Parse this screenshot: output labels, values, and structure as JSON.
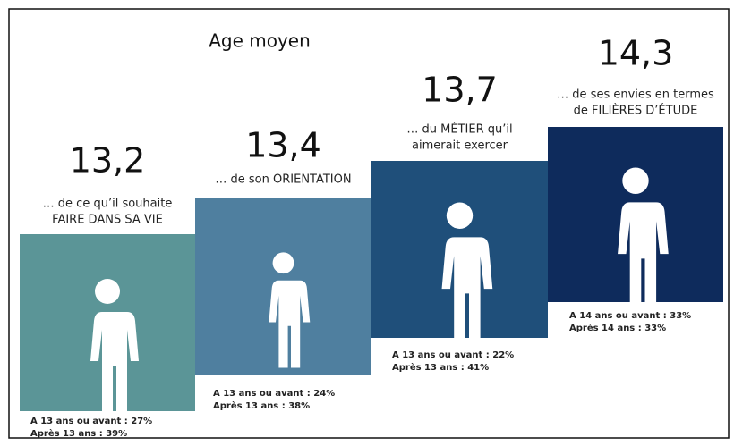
{
  "title": "Age moyen",
  "steps": [
    {
      "age": "13,2",
      "caption": [
        "… de ce qu’il souhaite",
        "FAIRE DANS SA VIE"
      ],
      "stats": [
        "A 13 ans ou avant : 27%",
        "Après 13 ans : 39%"
      ]
    },
    {
      "age": "13,4",
      "caption": [
        "… de son ORIENTATION"
      ],
      "stats": [
        "A 13 ans ou avant : 24%",
        "Après 13 ans : 38%"
      ]
    },
    {
      "age": "13,7",
      "caption": [
        "… du MÉTIER qu’il",
        "aimerait exercer"
      ],
      "stats": [
        "A 13 ans ou avant : 22%",
        "Après 13 ans : 41%"
      ]
    },
    {
      "age": "14,3",
      "caption": [
        "… de ses envies en termes",
        "de FILIÈRES D’ÉTUDE"
      ],
      "stats": [
        "A 14 ans ou avant : 33%",
        "Après 14 ans : 33%"
      ]
    }
  ]
}
